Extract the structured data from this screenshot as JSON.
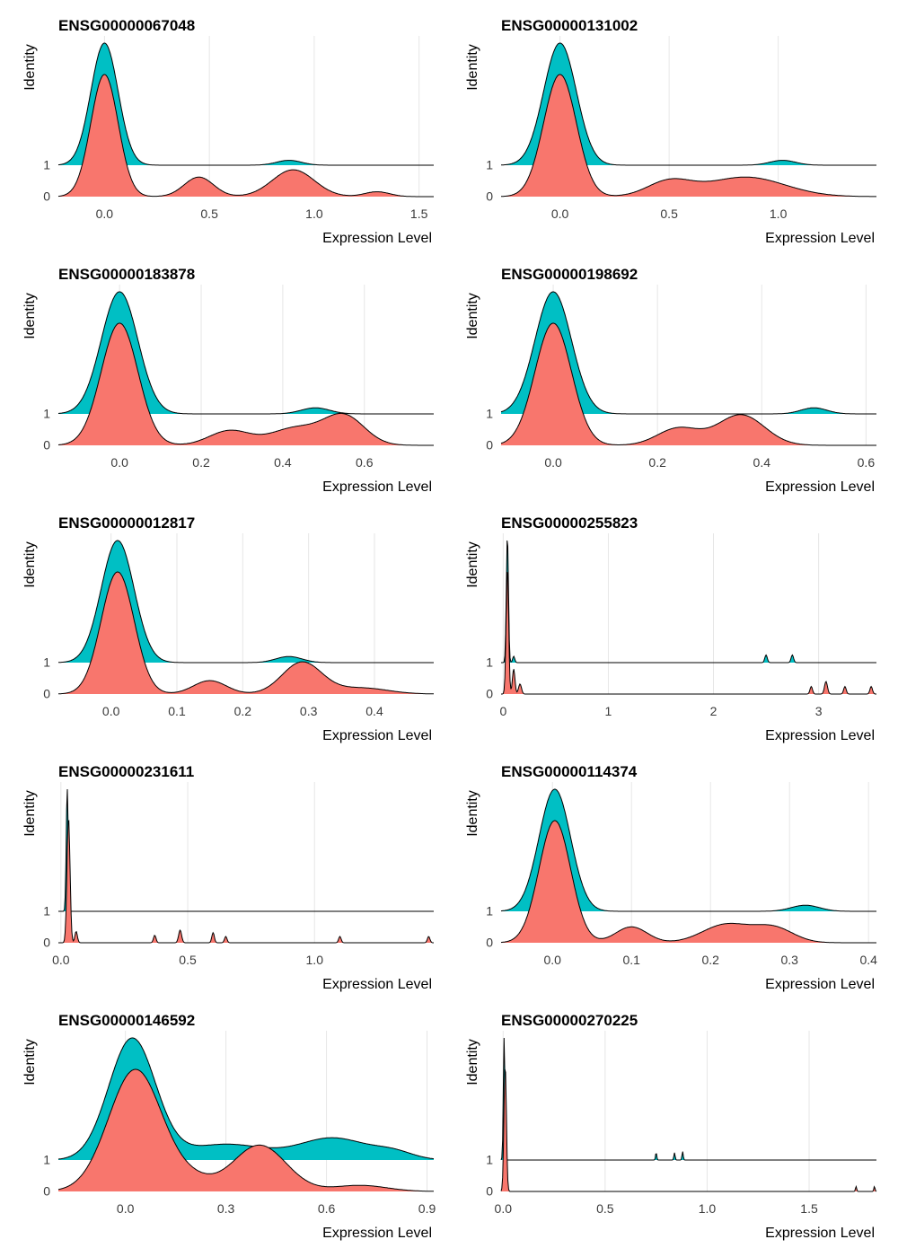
{
  "chart_data": [
    {
      "type": "ridgeline",
      "title": "ENSG00000067048",
      "xlabel": "Expression Level",
      "ylabel": "Identity",
      "xlim": [
        -0.22,
        1.57
      ],
      "xticks": [
        {
          "v": 0,
          "t": "0.0"
        },
        {
          "v": 0.5,
          "t": "0.5"
        },
        {
          "v": 1,
          "t": "1.0"
        },
        {
          "v": 1.5,
          "t": "1.5"
        }
      ],
      "series": [
        {
          "name": "0",
          "color": "#F8766D",
          "peaks": [
            [
              0.0,
              1.0,
              0.065
            ],
            [
              0.45,
              0.16,
              0.07
            ],
            [
              0.9,
              0.22,
              0.1
            ],
            [
              1.3,
              0.04,
              0.06
            ]
          ]
        },
        {
          "name": "1",
          "color": "#00BFC4",
          "peaks": [
            [
              0.0,
              1.0,
              0.065
            ],
            [
              0.88,
              0.04,
              0.06
            ]
          ]
        }
      ]
    },
    {
      "type": "ridgeline",
      "title": "ENSG00000131002",
      "xlabel": "Expression Level",
      "ylabel": "Identity",
      "xlim": [
        -0.27,
        1.45
      ],
      "xticks": [
        {
          "v": 0,
          "t": "0.0"
        },
        {
          "v": 0.5,
          "t": "0.5"
        },
        {
          "v": 1,
          "t": "1.0"
        }
      ],
      "series": [
        {
          "name": "0",
          "color": "#F8766D",
          "peaks": [
            [
              0.0,
              1.0,
              0.075
            ],
            [
              0.5,
              0.12,
              0.1
            ],
            [
              0.85,
              0.16,
              0.18
            ]
          ]
        },
        {
          "name": "1",
          "color": "#00BFC4",
          "peaks": [
            [
              0.0,
              1.0,
              0.075
            ],
            [
              1.02,
              0.04,
              0.06
            ]
          ]
        }
      ]
    },
    {
      "type": "ridgeline",
      "title": "ENSG00000183878",
      "xlabel": "Expression Level",
      "ylabel": "Identity",
      "xlim": [
        -0.15,
        0.77
      ],
      "xticks": [
        {
          "v": 0,
          "t": "0.0"
        },
        {
          "v": 0.2,
          "t": "0.2"
        },
        {
          "v": 0.4,
          "t": "0.4"
        },
        {
          "v": 0.6,
          "t": "0.6"
        }
      ],
      "series": [
        {
          "name": "0",
          "color": "#F8766D",
          "peaks": [
            [
              0.0,
              1.0,
              0.045
            ],
            [
              0.27,
              0.12,
              0.05
            ],
            [
              0.43,
              0.14,
              0.06
            ],
            [
              0.55,
              0.24,
              0.05
            ]
          ]
        },
        {
          "name": "1",
          "color": "#00BFC4",
          "peaks": [
            [
              0.0,
              1.0,
              0.045
            ],
            [
              0.48,
              0.05,
              0.035
            ]
          ]
        }
      ]
    },
    {
      "type": "ridgeline",
      "title": "ENSG00000198692",
      "xlabel": "Expression Level",
      "ylabel": "Identity",
      "xlim": [
        -0.1,
        0.62
      ],
      "xticks": [
        {
          "v": 0,
          "t": "0.0"
        },
        {
          "v": 0.2,
          "t": "0.2"
        },
        {
          "v": 0.4,
          "t": "0.4"
        },
        {
          "v": 0.6,
          "t": "0.6"
        }
      ],
      "series": [
        {
          "name": "0",
          "color": "#F8766D",
          "peaks": [
            [
              0.0,
              1.0,
              0.035
            ],
            [
              0.24,
              0.14,
              0.04
            ],
            [
              0.36,
              0.25,
              0.045
            ]
          ]
        },
        {
          "name": "1",
          "color": "#00BFC4",
          "peaks": [
            [
              0.0,
              1.0,
              0.035
            ],
            [
              0.5,
              0.05,
              0.025
            ]
          ]
        }
      ]
    },
    {
      "type": "ridgeline",
      "title": "ENSG00000012817",
      "xlabel": "Expression Level",
      "ylabel": "Identity",
      "xlim": [
        -0.08,
        0.49
      ],
      "xticks": [
        {
          "v": 0.0,
          "t": "0.0"
        },
        {
          "v": 0.1,
          "t": "0.1"
        },
        {
          "v": 0.2,
          "t": "0.2"
        },
        {
          "v": 0.3,
          "t": "0.3"
        },
        {
          "v": 0.4,
          "t": "0.4"
        }
      ],
      "series": [
        {
          "name": "0",
          "color": "#F8766D",
          "peaks": [
            [
              0.01,
              1.0,
              0.025
            ],
            [
              0.15,
              0.11,
              0.025
            ],
            [
              0.29,
              0.26,
              0.03
            ],
            [
              0.38,
              0.05,
              0.04
            ]
          ]
        },
        {
          "name": "1",
          "color": "#00BFC4",
          "peaks": [
            [
              0.01,
              1.0,
              0.025
            ],
            [
              0.27,
              0.05,
              0.02
            ]
          ]
        }
      ]
    },
    {
      "type": "ridgeline",
      "title": "ENSG00000255823",
      "xlabel": "Expression Level",
      "ylabel": "Identity",
      "xlim": [
        -0.02,
        3.55
      ],
      "xticks": [
        {
          "v": 0,
          "t": "0"
        },
        {
          "v": 1,
          "t": "1"
        },
        {
          "v": 2,
          "t": "2"
        },
        {
          "v": 3,
          "t": "3"
        }
      ],
      "series": [
        {
          "name": "0",
          "color": "#F8766D",
          "peaks": [
            [
              0.04,
              1.0,
              0.012
            ],
            [
              0.1,
              0.2,
              0.012
            ],
            [
              0.16,
              0.08,
              0.014
            ],
            [
              2.93,
              0.06,
              0.012
            ],
            [
              3.07,
              0.1,
              0.014
            ],
            [
              3.25,
              0.06,
              0.012
            ],
            [
              3.5,
              0.06,
              0.012
            ]
          ]
        },
        {
          "name": "1",
          "color": "#00BFC4",
          "peaks": [
            [
              0.04,
              1.0,
              0.01
            ],
            [
              0.1,
              0.05,
              0.01
            ],
            [
              2.5,
              0.06,
              0.012
            ],
            [
              2.75,
              0.06,
              0.012
            ]
          ]
        }
      ]
    },
    {
      "type": "ridgeline",
      "title": "ENSG00000231611",
      "xlabel": "Expression Level",
      "ylabel": "Identity",
      "xlim": [
        -0.01,
        1.47
      ],
      "xticks": [
        {
          "v": 0,
          "t": "0.0"
        },
        {
          "v": 0.5,
          "t": "0.5"
        },
        {
          "v": 1.0,
          "t": "1.0"
        }
      ],
      "series": [
        {
          "name": "0",
          "color": "#F8766D",
          "peaks": [
            [
              0.03,
              1.0,
              0.006
            ],
            [
              0.06,
              0.09,
              0.005
            ],
            [
              0.37,
              0.06,
              0.005
            ],
            [
              0.47,
              0.1,
              0.006
            ],
            [
              0.6,
              0.08,
              0.005
            ],
            [
              0.65,
              0.05,
              0.005
            ],
            [
              1.1,
              0.05,
              0.005
            ],
            [
              1.45,
              0.05,
              0.005
            ]
          ]
        },
        {
          "name": "1",
          "color": "#00BFC4",
          "peaks": [
            [
              0.025,
              1.0,
              0.004
            ]
          ]
        }
      ]
    },
    {
      "type": "ridgeline",
      "title": "ENSG00000114374",
      "xlabel": "Expression Level",
      "ylabel": "Identity",
      "xlim": [
        -0.065,
        0.41
      ],
      "xticks": [
        {
          "v": 0.0,
          "t": "0.0"
        },
        {
          "v": 0.1,
          "t": "0.1"
        },
        {
          "v": 0.2,
          "t": "0.2"
        },
        {
          "v": 0.3,
          "t": "0.3"
        },
        {
          "v": 0.4,
          "t": "0.4"
        }
      ],
      "series": [
        {
          "name": "0",
          "color": "#F8766D",
          "peaks": [
            [
              0.003,
              1.0,
              0.02
            ],
            [
              0.1,
              0.13,
              0.02
            ],
            [
              0.22,
              0.15,
              0.03
            ],
            [
              0.28,
              0.12,
              0.025
            ]
          ]
        },
        {
          "name": "1",
          "color": "#00BFC4",
          "peaks": [
            [
              0.003,
              1.0,
              0.02
            ],
            [
              0.32,
              0.05,
              0.018
            ]
          ]
        }
      ]
    },
    {
      "type": "ridgeline",
      "title": "ENSG00000146592",
      "xlabel": "Expression Level",
      "ylabel": "Identity",
      "xlim": [
        -0.2,
        0.92
      ],
      "xticks": [
        {
          "v": 0.0,
          "t": "0.0"
        },
        {
          "v": 0.3,
          "t": "0.3"
        },
        {
          "v": 0.6,
          "t": "0.6"
        },
        {
          "v": 0.9,
          "t": "0.9"
        }
      ],
      "series": [
        {
          "name": "0",
          "color": "#F8766D",
          "peaks": [
            [
              0.03,
              1.0,
              0.08
            ],
            [
              0.2,
              0.08,
              0.06
            ],
            [
              0.4,
              0.38,
              0.08
            ],
            [
              0.7,
              0.05,
              0.08
            ]
          ]
        },
        {
          "name": "1",
          "color": "#00BFC4",
          "peaks": [
            [
              0.02,
              1.0,
              0.07
            ],
            [
              0.3,
              0.13,
              0.12
            ],
            [
              0.62,
              0.18,
              0.1
            ],
            [
              0.8,
              0.06,
              0.06
            ]
          ]
        }
      ]
    },
    {
      "type": "ridgeline",
      "title": "ENSG00000270225",
      "xlabel": "Expression Level",
      "ylabel": "Identity",
      "xlim": [
        -0.01,
        1.83
      ],
      "xticks": [
        {
          "v": 0,
          "t": "0.0"
        },
        {
          "v": 0.5,
          "t": "0.5"
        },
        {
          "v": 1.0,
          "t": "1.0"
        },
        {
          "v": 1.5,
          "t": "1.5"
        }
      ],
      "series": [
        {
          "name": "0",
          "color": "#F8766D",
          "peaks": [
            [
              0.01,
              1.0,
              0.006
            ],
            [
              1.73,
              0.04,
              0.003
            ],
            [
              1.82,
              0.04,
              0.003
            ]
          ]
        },
        {
          "name": "1",
          "color": "#00BFC4",
          "peaks": [
            [
              0.005,
              1.0,
              0.004
            ],
            [
              0.75,
              0.06,
              0.003
            ],
            [
              0.84,
              0.06,
              0.003
            ],
            [
              0.88,
              0.07,
              0.003
            ]
          ]
        }
      ]
    }
  ]
}
